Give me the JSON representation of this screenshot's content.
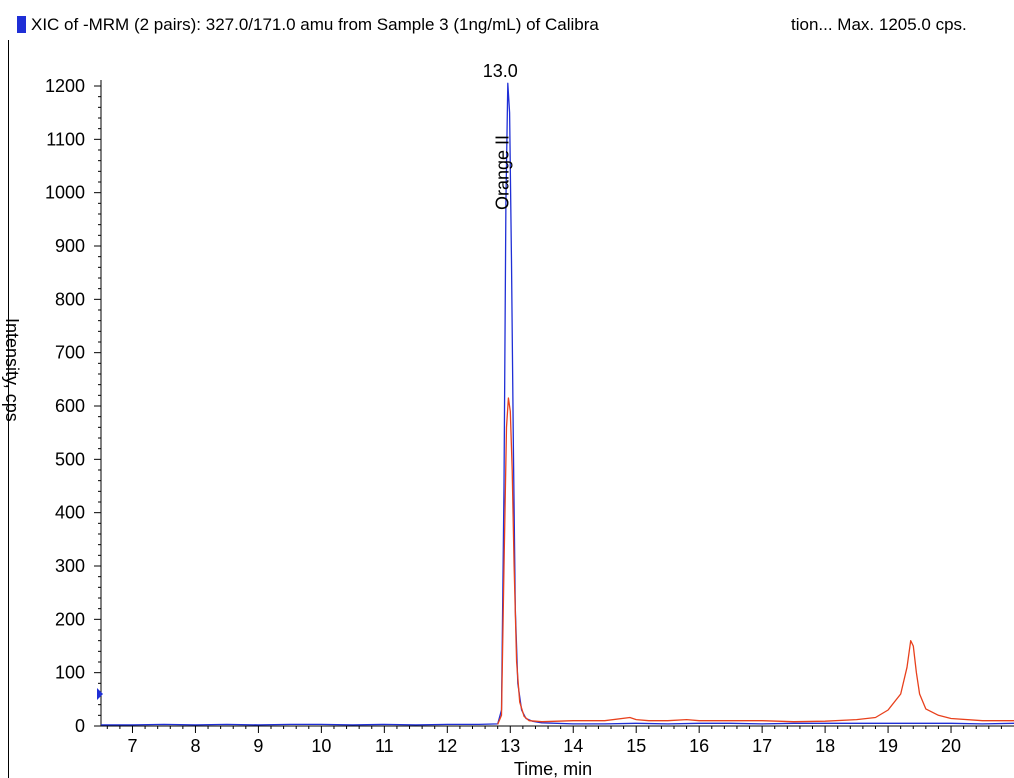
{
  "header": {
    "title_left": "XIC of  -MRM (2 pairs): 327.0/171.0 amu from Sample 3 (1ng/mL) of Calibra",
    "title_right": "tion... Max. 1205.0 cps."
  },
  "colors": {
    "series_blue": "#1f2fd6",
    "series_red": "#e8401c",
    "swatch": "#1f2fd6"
  },
  "chart_data": {
    "type": "line",
    "title": "XIC of  -MRM (2 pairs): 327.0/171.0 amu from Sample 3 (1ng/mL) of Calibra tion... Max. 1205.0 cps.",
    "xlabel": "Time, min",
    "ylabel": "Intensity, cps",
    "xlim": [
      6.5,
      21.0
    ],
    "ylim": [
      0,
      1220
    ],
    "x_ticks": [
      7,
      8,
      9,
      10,
      11,
      12,
      13,
      14,
      15,
      16,
      17,
      18,
      19,
      20
    ],
    "y_ticks": [
      0,
      100,
      200,
      300,
      400,
      500,
      600,
      700,
      800,
      900,
      1000,
      1100,
      1200
    ],
    "grid": false,
    "annotations": [
      {
        "text": "13.0",
        "x": 13.0,
        "y": 1205
      },
      {
        "text": "Orange II",
        "x": 13.0,
        "y": 1000,
        "orientation": "vertical"
      }
    ],
    "series": [
      {
        "color": "#1f2fd6",
        "x": [
          6.5,
          7.0,
          7.5,
          8.0,
          8.5,
          9.0,
          9.5,
          10.0,
          10.5,
          11.0,
          11.5,
          12.0,
          12.5,
          12.8,
          12.86,
          12.9,
          12.93,
          12.96,
          12.99,
          13.02,
          13.05,
          13.08,
          13.12,
          13.18,
          13.25,
          13.35,
          13.5,
          14.0,
          14.5,
          15.0,
          15.5,
          16.0,
          16.5,
          17.0,
          17.5,
          18.0,
          18.5,
          19.0,
          19.5,
          20.0,
          20.5,
          21.0
        ],
        "values": [
          2,
          2,
          3,
          2,
          3,
          2,
          3,
          3,
          2,
          3,
          2,
          3,
          3,
          4,
          30,
          450,
          980,
          1205,
          1150,
          870,
          520,
          220,
          80,
          30,
          14,
          9,
          6,
          4,
          4,
          5,
          4,
          5,
          5,
          4,
          5,
          5,
          5,
          5,
          5,
          5,
          4,
          5
        ]
      },
      {
        "color": "#e8401c",
        "x": [
          12.8,
          12.86,
          12.9,
          12.94,
          12.97,
          13.0,
          13.03,
          13.06,
          13.1,
          13.15,
          13.22,
          13.3,
          13.5,
          14.0,
          14.5,
          14.9,
          15.0,
          15.2,
          15.5,
          15.8,
          16.0,
          16.5,
          17.0,
          17.5,
          18.0,
          18.5,
          18.8,
          19.0,
          19.2,
          19.3,
          19.36,
          19.4,
          19.45,
          19.5,
          19.6,
          19.8,
          20.0,
          20.5,
          21.0
        ],
        "values": [
          3,
          20,
          300,
          560,
          615,
          590,
          480,
          300,
          120,
          45,
          18,
          10,
          8,
          10,
          10,
          16,
          12,
          10,
          10,
          12,
          10,
          10,
          10,
          8,
          9,
          12,
          16,
          30,
          60,
          110,
          160,
          150,
          100,
          60,
          32,
          20,
          14,
          10,
          10
        ]
      }
    ]
  }
}
